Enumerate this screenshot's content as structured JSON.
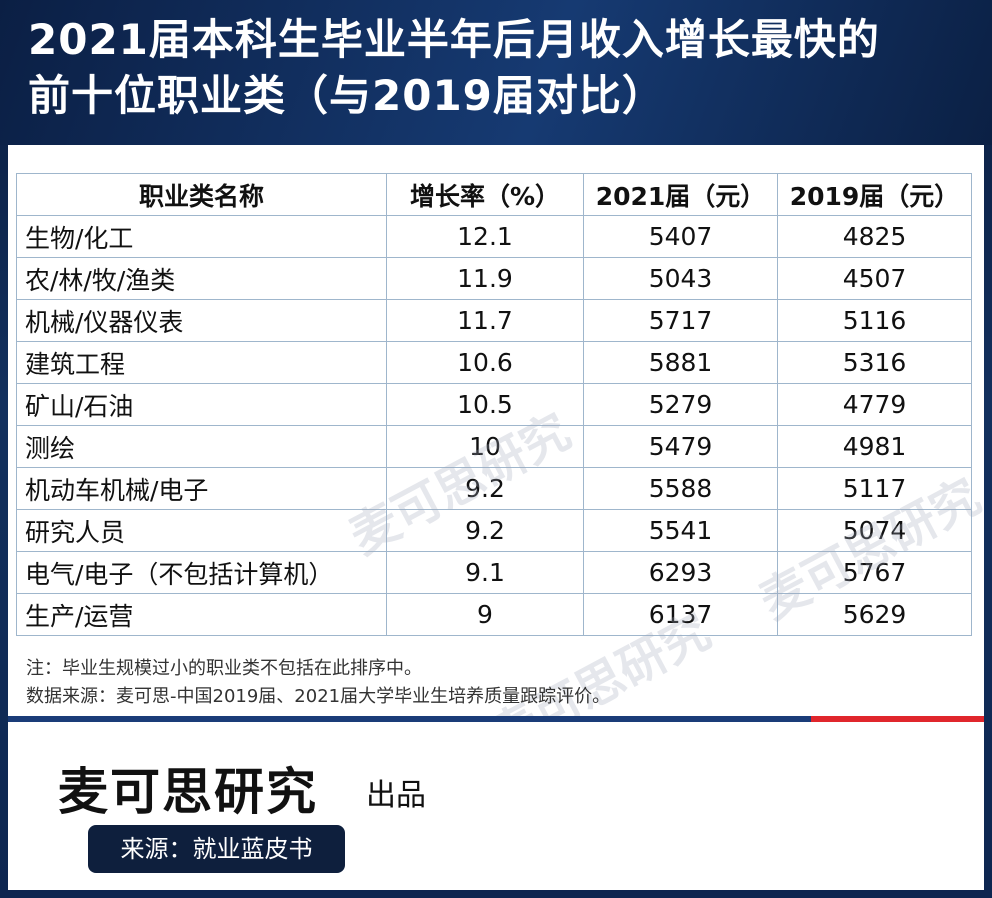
{
  "title": {
    "line1": "2021届本科生毕业半年后月收入增长最快的",
    "line2": "前十位职业类（与2019届对比）"
  },
  "table": {
    "headers": [
      "职业类名称",
      "增长率（%）",
      "2021届（元）",
      "2019届（元）"
    ],
    "rows": [
      [
        "生物/化工",
        "12.1",
        "5407",
        "4825"
      ],
      [
        "农/林/牧/渔类",
        "11.9",
        "5043",
        "4507"
      ],
      [
        "机械/仪器仪表",
        "11.7",
        "5717",
        "5116"
      ],
      [
        "建筑工程",
        "10.6",
        "5881",
        "5316"
      ],
      [
        "矿山/石油",
        "10.5",
        "5279",
        "4779"
      ],
      [
        "测绘",
        "10",
        "5479",
        "4981"
      ],
      [
        "机动车机械/电子",
        "9.2",
        "5588",
        "5117"
      ],
      [
        "研究人员",
        "9.2",
        "5541",
        "5074"
      ],
      [
        "电气/电子（不包括计算机）",
        "9.1",
        "6293",
        "5767"
      ],
      [
        "生产/运营",
        "9",
        "6137",
        "5629"
      ]
    ]
  },
  "notes": {
    "note1": "注：毕业生规模过小的职业类不包括在此排序中。",
    "note2": "数据来源：麦可思-中国2019届、2021届大学毕业生培养质量跟踪评价。"
  },
  "footer": {
    "brand": "麦可思研究",
    "brand_suffix": "出品",
    "source": "来源：就业蓝皮书"
  },
  "watermark": {
    "text": "麦可思研究"
  },
  "colors": {
    "header_bg": "#0b1f44",
    "table_border": "#9fb6cc",
    "accent_red": "#e0262c",
    "badge_bg": "#0e1f3d"
  }
}
